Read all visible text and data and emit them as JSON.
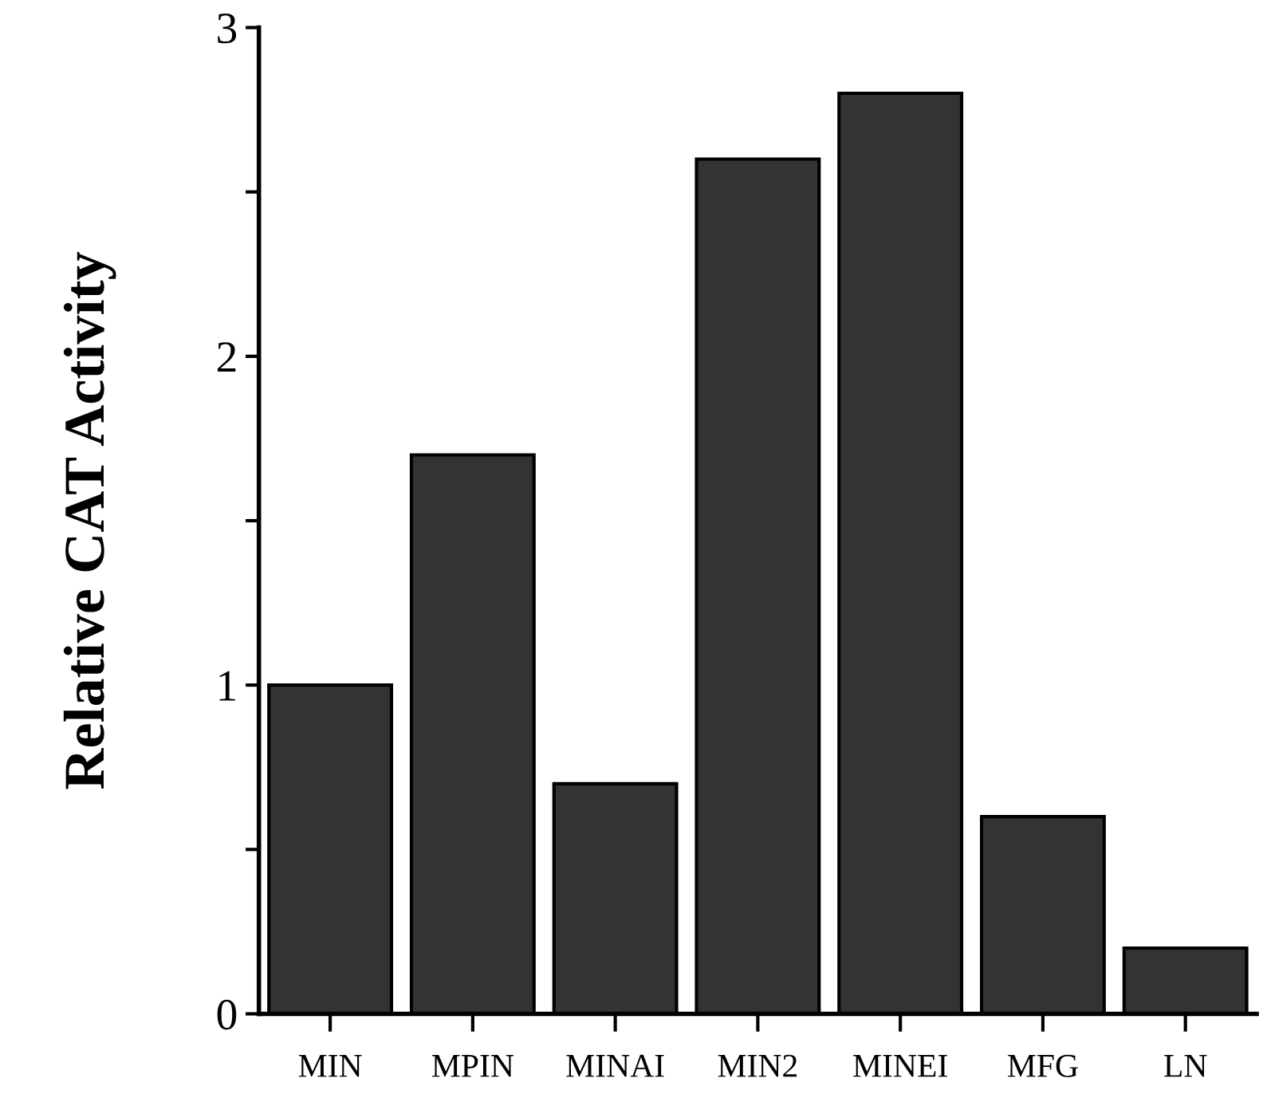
{
  "chart_data": {
    "type": "bar",
    "ylabel": "Relative CAT Activity",
    "categories": [
      "MIN",
      "MPIN",
      "MINAI",
      "MIN2",
      "MINEI",
      "MFG",
      "LN"
    ],
    "values": [
      1.0,
      1.7,
      0.7,
      2.6,
      2.8,
      0.6,
      0.2
    ],
    "color": "#333333",
    "ylim": [
      0,
      3
    ],
    "yticks": [
      0,
      {
        "value": 0.5,
        "label": null
      },
      1,
      {
        "value": 1.5,
        "label": null
      },
      2,
      {
        "value": 2.5,
        "label": null
      },
      3
    ],
    "grid": false
  }
}
